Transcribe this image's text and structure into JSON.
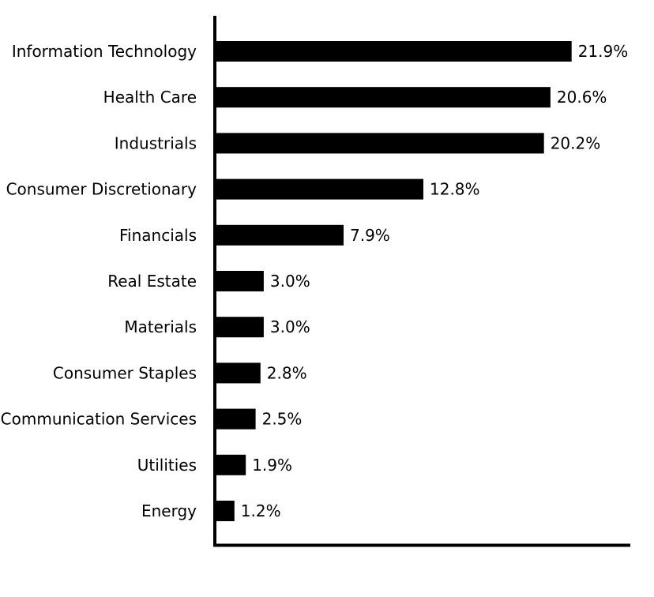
{
  "chart_data": {
    "type": "bar",
    "orientation": "horizontal",
    "categories": [
      "Information Technology",
      "Health Care",
      "Industrials",
      "Consumer Discretionary",
      "Financials",
      "Real Estate",
      "Materials",
      "Consumer Staples",
      "Communication Services",
      "Utilities",
      "Energy"
    ],
    "values": [
      21.9,
      20.6,
      20.2,
      12.8,
      7.9,
      3.0,
      3.0,
      2.8,
      2.5,
      1.9,
      1.2
    ],
    "value_labels": [
      "21.9%",
      "20.6%",
      "20.2%",
      "12.8%",
      "7.9%",
      "3.0%",
      "3.0%",
      "2.8%",
      "2.5%",
      "1.9%",
      "1.2%"
    ],
    "xlim": [
      0,
      25.5
    ],
    "grid": false,
    "bar_color": "#000000",
    "axis_color": "#000000"
  }
}
